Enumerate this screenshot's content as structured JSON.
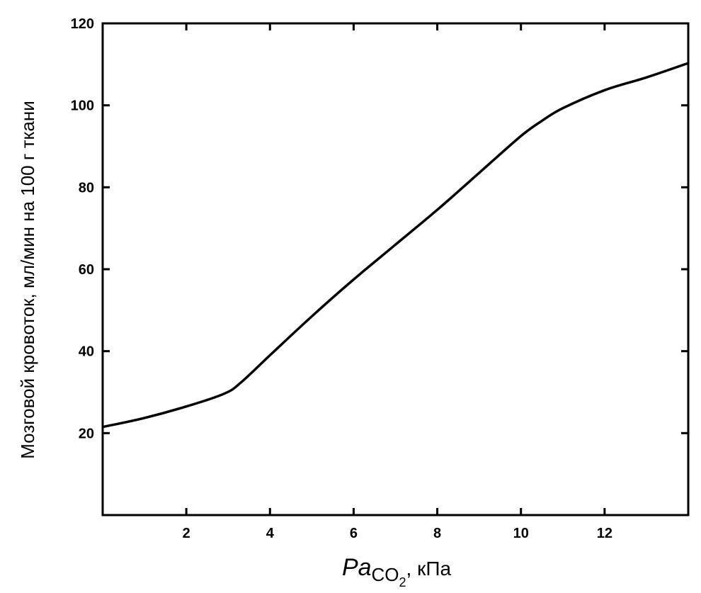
{
  "chart_data": {
    "type": "line",
    "title": "",
    "xlabel": {
      "main": "Pa",
      "sub": "CO",
      "subsub": "2",
      "suffix": ", кПа"
    },
    "ylabel": "Мозговой кровоток, мл/мин на 100 г ткани",
    "xlim": [
      0,
      14
    ],
    "ylim": [
      0,
      120
    ],
    "x_ticks": [
      2,
      4,
      6,
      8,
      10,
      12
    ],
    "y_ticks": [
      20,
      40,
      60,
      80,
      100,
      120
    ],
    "grid": false,
    "series": [
      {
        "x": [
          0,
          1,
          2,
          2.9,
          3.3,
          4,
          5,
          6,
          7,
          8,
          9,
          10,
          10.5,
          11,
          12,
          13,
          14
        ],
        "y": [
          21.5,
          23.7,
          26.5,
          29.6,
          32.3,
          39,
          48.5,
          57.5,
          66,
          74.5,
          83.5,
          92.5,
          96.2,
          99.3,
          103.7,
          106.8,
          110.3
        ]
      }
    ]
  }
}
